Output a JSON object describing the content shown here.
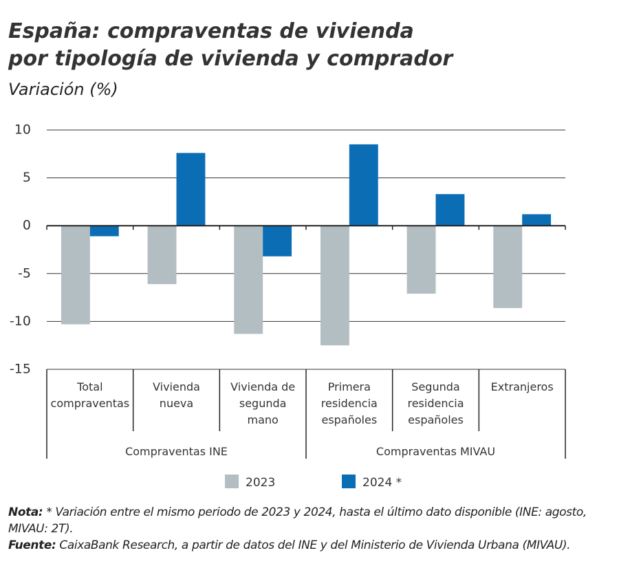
{
  "chart_data": {
    "type": "bar",
    "title": [
      "España: compraventas de vivienda",
      "por tipología de vivienda y comprador"
    ],
    "subtitle": "Variación (%)",
    "categories": [
      [
        "Total",
        "compraventas"
      ],
      [
        "Vivienda",
        "nueva"
      ],
      [
        "Vivienda de",
        "segunda",
        "mano"
      ],
      [
        "Primera",
        "residencia",
        "españoles"
      ],
      [
        "Segunda",
        "residencia",
        "españoles"
      ],
      [
        "Extranjeros"
      ]
    ],
    "group_labels": [
      "Compraventas INE",
      "Compraventas MIVAU"
    ],
    "series": [
      {
        "name": "2023",
        "color": "#b3bec3",
        "values": [
          -10.3,
          -6.1,
          -11.3,
          -12.5,
          -7.1,
          -8.6
        ]
      },
      {
        "name": "2024 *",
        "color": "#0b6db3",
        "values": [
          -1.1,
          7.6,
          -3.2,
          8.5,
          3.3,
          1.2
        ]
      }
    ],
    "ylim": [
      -15,
      10
    ],
    "yticks": [
      -15,
      -10,
      -5,
      0,
      5,
      10
    ],
    "grid": true
  },
  "notes": {
    "note_label": "Nota:",
    "note_text": "* Variación entre el mismo periodo de 2023 y 2024, hasta el último dato disponible (INE: agosto, MIVAU: 2T).",
    "source_label": "Fuente:",
    "source_text": "CaixaBank Research, a partir de datos del INE y del Ministerio de Vivienda Urbana (MIVAU)."
  }
}
